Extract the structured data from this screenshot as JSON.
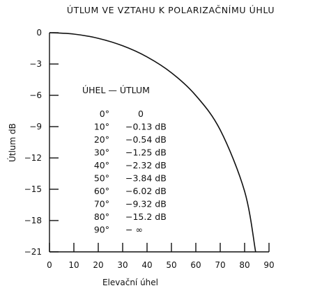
{
  "chart_data": {
    "type": "line",
    "title": "ÚTLUM VE VZTAHU K POLARIZAČNÍMU ÚHLU",
    "xlabel": "Elevační úhel",
    "ylabel": "Útlum dB",
    "xlim": [
      0,
      90
    ],
    "ylim": [
      -21,
      0
    ],
    "x_ticks": [
      0,
      10,
      20,
      30,
      40,
      50,
      60,
      70,
      80,
      90
    ],
    "y_ticks": [
      0,
      -3,
      -6,
      -9,
      -12,
      -15,
      -18,
      -21
    ],
    "x_tick_labels": [
      "0",
      "10",
      "20",
      "30",
      "40",
      "50",
      "60",
      "70",
      "80",
      "90"
    ],
    "y_tick_labels": [
      "0",
      "−3",
      "−6",
      "−9",
      "−12",
      "−15",
      "−18",
      "−21"
    ],
    "grid": false,
    "series": [
      {
        "x": [
          0,
          10,
          20,
          30,
          40,
          50,
          60,
          70,
          80,
          84.5
        ],
        "y": [
          0,
          -0.13,
          -0.54,
          -1.25,
          -2.32,
          -3.84,
          -6.02,
          -9.32,
          -15.2,
          -21
        ]
      }
    ],
    "table": {
      "header": "ÚHEL — ÚTLUM",
      "rows": [
        {
          "angle": "0°",
          "value": "0"
        },
        {
          "angle": "10°",
          "value": "−0.13 dB"
        },
        {
          "angle": "20°",
          "value": "−0.54 dB"
        },
        {
          "angle": "30°",
          "value": "−1.25 dB"
        },
        {
          "angle": "40°",
          "value": "−2.32 dB"
        },
        {
          "angle": "50°",
          "value": "−3.84 dB"
        },
        {
          "angle": "60°",
          "value": "−6.02 dB"
        },
        {
          "angle": "70°",
          "value": "−9.32 dB"
        },
        {
          "angle": "80°",
          "value": "−15.2 dB"
        },
        {
          "angle": "90°",
          "value": "− ∞"
        }
      ]
    }
  }
}
